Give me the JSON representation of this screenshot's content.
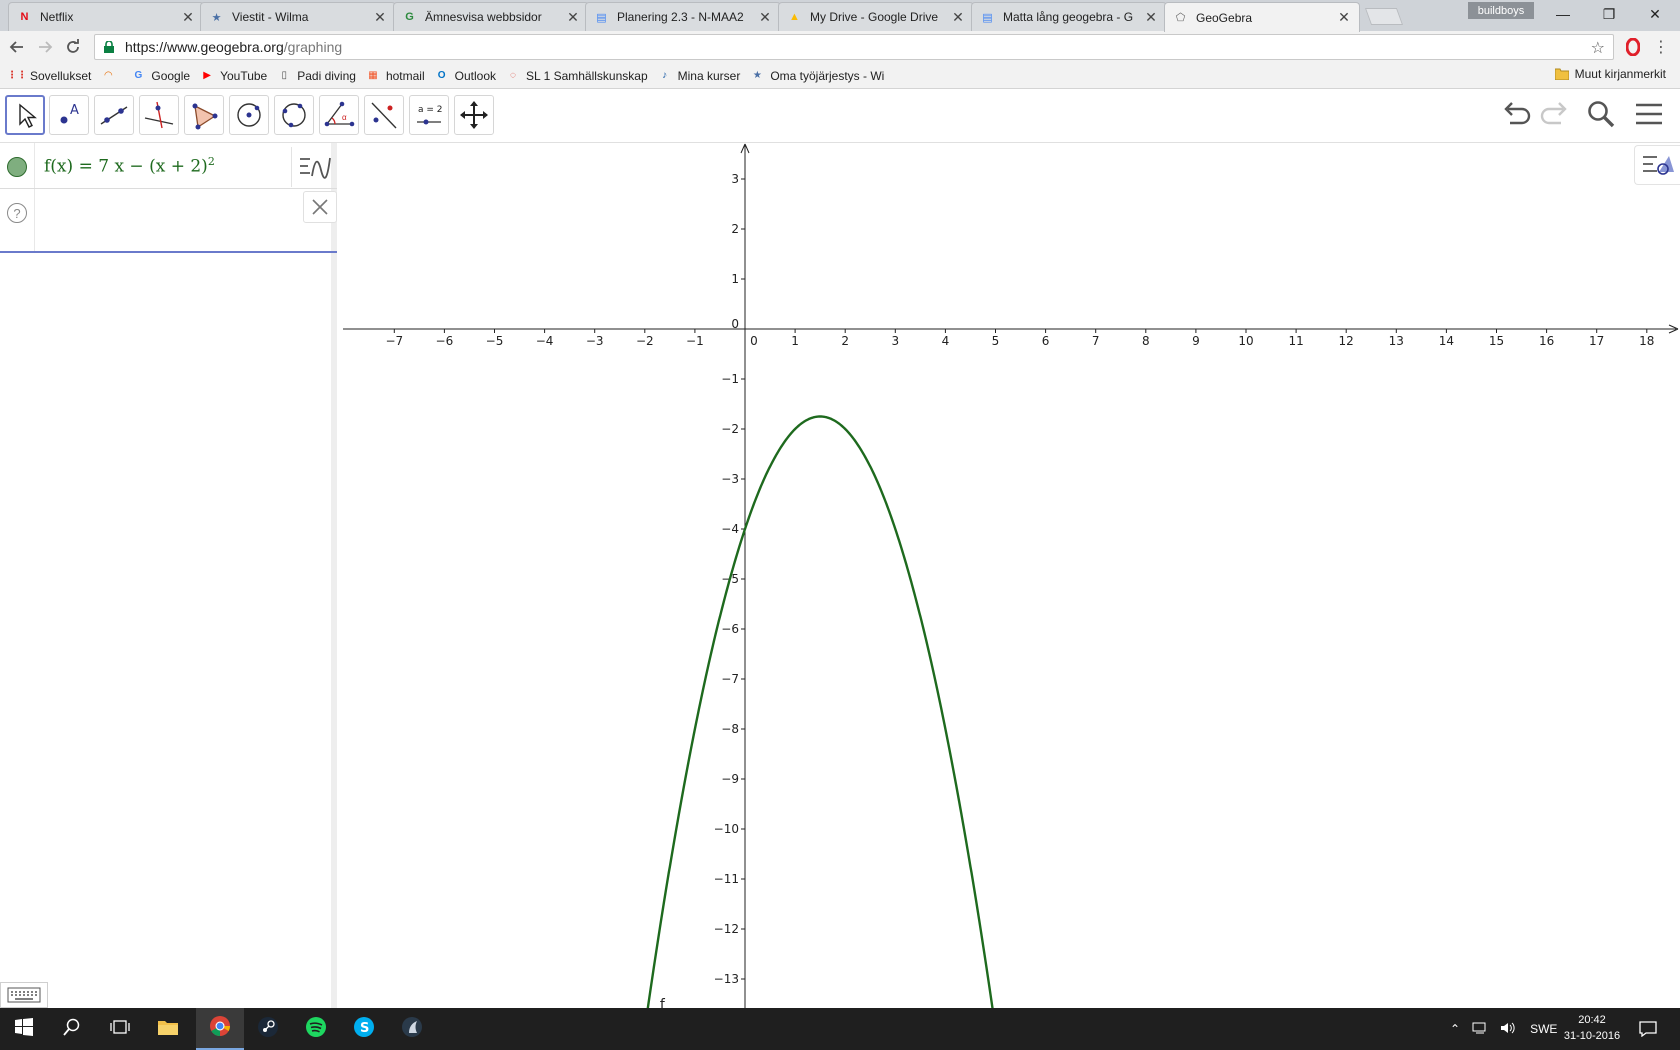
{
  "browser": {
    "tabs": [
      {
        "title": "Netflix",
        "icon": "netflix-icon",
        "color": "#e50914"
      },
      {
        "title": "Viestit - Wilma",
        "icon": "wilma-icon",
        "color": "#4a6fa5"
      },
      {
        "title": "Ämnesvisa webbsidor",
        "icon": "google-sites-icon",
        "color": "#2d8a3e"
      },
      {
        "title": "Planering 2.3 - N-MAA2",
        "icon": "google-docs-icon",
        "color": "#4285f4"
      },
      {
        "title": "My Drive - Google Drive",
        "icon": "google-drive-icon",
        "color": "#fbbc04"
      },
      {
        "title": "Matta lång geogebra - G",
        "icon": "google-docs-icon",
        "color": "#4285f4"
      },
      {
        "title": "GeoGebra",
        "icon": "geogebra-icon",
        "color": "#666666"
      }
    ],
    "active_tab": 6,
    "profile_name": "buildboys",
    "url_host": "https://www.geogebra.org",
    "url_path": "/graphing",
    "bookmarks": [
      {
        "label": "Sovellukset",
        "icon": "apps-grid-icon"
      },
      {
        "label": "",
        "icon": "rainbow-icon"
      },
      {
        "label": "Google",
        "icon": "google-icon"
      },
      {
        "label": "YouTube",
        "icon": "youtube-icon"
      },
      {
        "label": "Padi diving",
        "icon": "page-icon"
      },
      {
        "label": "hotmail",
        "icon": "windows-logo-icon"
      },
      {
        "label": "Outlook",
        "icon": "outlook-icon"
      },
      {
        "label": "SL 1 Samhällskunskap",
        "icon": "ring-icon"
      },
      {
        "label": "Mina kurser",
        "icon": "moodle-icon"
      },
      {
        "label": "Oma työjärjestys - Wi",
        "icon": "wilma-icon"
      }
    ],
    "other_bookmarks": "Muut kirjanmerkit"
  },
  "geogebra": {
    "tools": [
      "move-tool",
      "point-tool",
      "segment-tool",
      "perpendicular-tool",
      "polygon-tool",
      "circle-center-tool",
      "circle-three-points-tool",
      "angle-tool",
      "reflect-tool",
      "slider-tool",
      "move-graphics-tool"
    ],
    "slider_tool_label": "a = 2",
    "algebra": {
      "function_name": "f(x)",
      "equals": "=",
      "expr_main": "7 x − (x + 2)",
      "expr_exponent": "2",
      "curve_color": "#1e6a1e",
      "input_value": ""
    },
    "curve_label": "f"
  },
  "chart_data": {
    "type": "line",
    "title": "",
    "xlabel": "",
    "ylabel": "",
    "function": "7x - (x+2)^2",
    "xlim": [
      -8,
      19.5
    ],
    "ylim": [
      -13.8,
      3.6
    ],
    "xticks": [
      -7,
      -6,
      -5,
      -4,
      -3,
      -2,
      -1,
      0,
      1,
      2,
      3,
      4,
      5,
      6,
      7,
      8,
      9,
      10,
      11,
      12,
      13,
      14,
      15,
      16,
      17,
      18
    ],
    "yticks": [
      3,
      2,
      1,
      0,
      -1,
      -2,
      -3,
      -4,
      -5,
      -6,
      -7,
      -8,
      -9,
      -10,
      -11,
      -12,
      -13
    ],
    "vertex": [
      1.5,
      -1.75
    ],
    "grid": false,
    "series": [
      {
        "name": "f",
        "color": "#1e6a1e"
      }
    ]
  },
  "taskbar": {
    "apps": [
      "windows-start-icon",
      "search-icon",
      "task-view-icon",
      "file-explorer-icon",
      "chrome-icon",
      "steam-icon",
      "spotify-icon",
      "skype-icon",
      "app-icon"
    ],
    "language": "SWE",
    "time": "20:42",
    "date": "31-10-2016"
  }
}
